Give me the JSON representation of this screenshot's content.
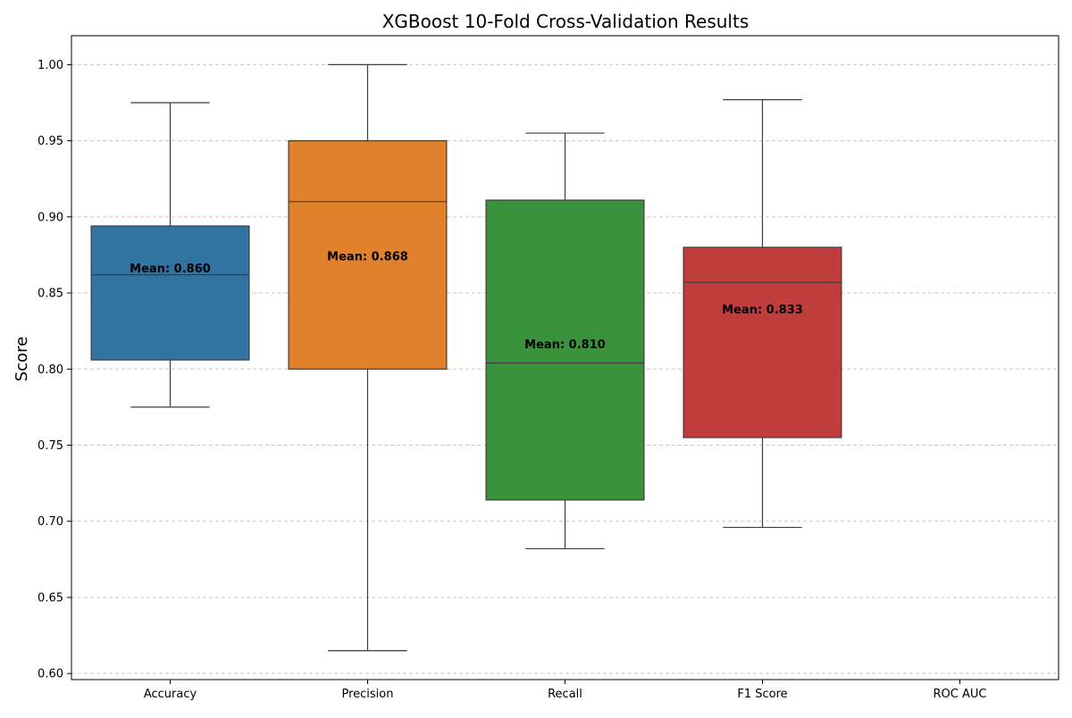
{
  "chart_data": {
    "type": "box",
    "title": "XGBoost 10-Fold Cross-Validation Results",
    "xlabel": "",
    "ylabel": "Score",
    "ylim": [
      0.596,
      1.019
    ],
    "yticks": [
      0.6,
      0.65,
      0.7,
      0.75,
      0.8,
      0.85,
      0.9,
      0.95,
      1.0
    ],
    "grid": {
      "y": true,
      "style": "dashed"
    },
    "categories": [
      "Accuracy",
      "Precision",
      "Recall",
      "F1 Score",
      "ROC AUC"
    ],
    "boxes": [
      {
        "category": "Accuracy",
        "whisker_low": 0.775,
        "q1": 0.806,
        "median": 0.862,
        "q3": 0.894,
        "whisker_high": 0.975,
        "mean": 0.86,
        "mean_label": "Mean: 0.860",
        "color": "#3274a1"
      },
      {
        "category": "Precision",
        "whisker_low": 0.615,
        "q1": 0.8,
        "median": 0.91,
        "q3": 0.95,
        "whisker_high": 1.0,
        "mean": 0.868,
        "mean_label": "Mean: 0.868",
        "color": "#e1812c"
      },
      {
        "category": "Recall",
        "whisker_low": 0.682,
        "q1": 0.714,
        "median": 0.804,
        "q3": 0.911,
        "whisker_high": 0.955,
        "mean": 0.81,
        "mean_label": "Mean: 0.810",
        "color": "#3a923a"
      },
      {
        "category": "F1 Score",
        "whisker_low": 0.696,
        "q1": 0.755,
        "median": 0.857,
        "q3": 0.88,
        "whisker_high": 0.977,
        "mean": 0.833,
        "mean_label": "Mean: 0.833",
        "color": "#c03d3e"
      },
      {
        "category": "ROC AUC",
        "whisker_low": null,
        "q1": null,
        "median": null,
        "q3": null,
        "whisker_high": null,
        "mean": null,
        "mean_label": "",
        "color": "#9372b2"
      }
    ]
  }
}
